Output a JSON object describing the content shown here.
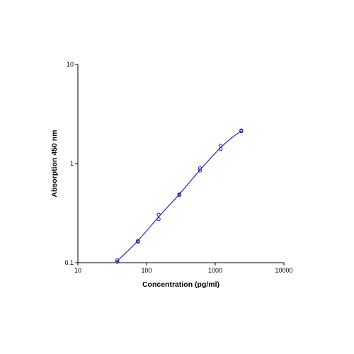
{
  "chart_data": {
    "type": "scatter",
    "title": "",
    "xlabel": "Concentration (pg/ml)",
    "ylabel": "Absorption 450 nm",
    "xscale": "log",
    "yscale": "log",
    "xlim": [
      10,
      10000
    ],
    "ylim": [
      0.1,
      10
    ],
    "xticks": [
      "10",
      "100",
      "1000",
      "10000"
    ],
    "yticks": [
      "0.1",
      "1",
      "10"
    ],
    "grid": false,
    "legend": "none",
    "colors": {
      "series": "#1a1aa8",
      "axis": "#000000"
    },
    "series": [
      {
        "points": [
          [
            37.5,
            0.102
          ],
          [
            37.5,
            0.106
          ],
          [
            75,
            0.163
          ],
          [
            75,
            0.166
          ],
          [
            150,
            0.275
          ],
          [
            150,
            0.305
          ],
          [
            300,
            0.48
          ],
          [
            300,
            0.49
          ],
          [
            600,
            0.85
          ],
          [
            600,
            0.9
          ],
          [
            1200,
            1.4
          ],
          [
            1200,
            1.52
          ],
          [
            2400,
            2.12
          ],
          [
            2400,
            2.16
          ]
        ],
        "fit_curve": [
          [
            37.5,
            0.104
          ],
          [
            75,
            0.167
          ],
          [
            150,
            0.29
          ],
          [
            300,
            0.49
          ],
          [
            600,
            0.86
          ],
          [
            1200,
            1.45
          ],
          [
            1800,
            1.85
          ],
          [
            2400,
            2.13
          ]
        ]
      }
    ]
  }
}
